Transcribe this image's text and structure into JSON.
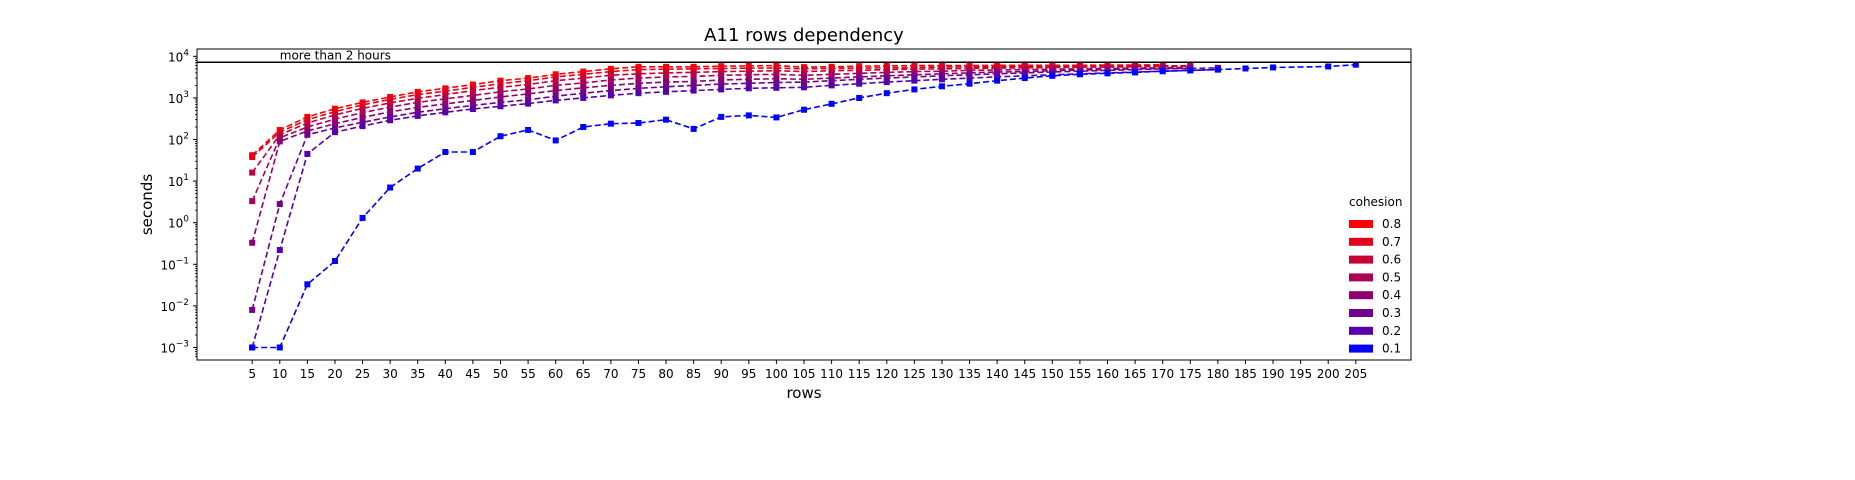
{
  "chart_data": {
    "type": "line",
    "title": "A11 rows dependency",
    "xlabel": "rows",
    "ylabel": "seconds",
    "y_scale": "log",
    "ylim": [
      0.0005,
      15000
    ],
    "xlim": [
      -5,
      215
    ],
    "x_ticks": [
      5,
      10,
      15,
      20,
      25,
      30,
      35,
      40,
      45,
      50,
      55,
      60,
      65,
      70,
      75,
      80,
      85,
      90,
      95,
      100,
      105,
      110,
      115,
      120,
      125,
      130,
      135,
      140,
      145,
      150,
      155,
      160,
      165,
      170,
      175,
      180,
      185,
      190,
      195,
      200,
      205
    ],
    "y_ticks": [
      {
        "value": 0.001,
        "base": "10",
        "exp": "−3"
      },
      {
        "value": 0.01,
        "base": "10",
        "exp": "−2"
      },
      {
        "value": 0.1,
        "base": "10",
        "exp": "−1"
      },
      {
        "value": 1,
        "base": "10",
        "exp": "0"
      },
      {
        "value": 10,
        "base": "10",
        "exp": "1"
      },
      {
        "value": 100,
        "base": "10",
        "exp": "2"
      },
      {
        "value": 1000,
        "base": "10",
        "exp": "3"
      },
      {
        "value": 10000,
        "base": "10",
        "exp": "4"
      }
    ],
    "threshold": {
      "value": 7200,
      "label": "more than 2 hours",
      "color": "#000000"
    },
    "legend": {
      "title": "cohesion",
      "placement": "center-right"
    },
    "grid": false,
    "series": [
      {
        "name": "0.8",
        "color": "#ff0000",
        "x": [
          5,
          10,
          15,
          20,
          25,
          30,
          35,
          40,
          45,
          50,
          55,
          60,
          65,
          70,
          75,
          80,
          85,
          90,
          95,
          100,
          105,
          110,
          115,
          120,
          125,
          130,
          135,
          140,
          145,
          150,
          155,
          160,
          165,
          170
        ],
        "y": [
          42,
          170,
          350,
          550,
          780,
          1050,
          1400,
          1700,
          2100,
          2600,
          3000,
          3700,
          4300,
          5000,
          5600,
          5600,
          5600,
          5800,
          5900,
          6000,
          5500,
          5600,
          5800,
          5900,
          6000,
          6000,
          6000,
          6100,
          6100,
          6100,
          6100,
          6200,
          6200,
          6300
        ]
      },
      {
        "name": "0.7",
        "color": "#e2001c",
        "x": [
          5,
          10,
          15,
          20,
          25,
          30,
          35,
          40,
          45,
          50,
          55,
          60,
          65,
          70,
          75,
          80,
          85,
          90,
          95,
          100,
          105,
          110,
          115,
          120,
          125,
          130,
          135,
          140,
          145,
          150,
          155,
          160,
          165,
          170,
          175
        ],
        "y": [
          38,
          150,
          300,
          470,
          680,
          920,
          1200,
          1450,
          1800,
          2200,
          2600,
          3200,
          3700,
          4300,
          4800,
          4900,
          5000,
          5100,
          5200,
          5200,
          5000,
          5100,
          5200,
          5300,
          5400,
          5500,
          5600,
          5600,
          5700,
          5700,
          5800,
          5800,
          5900,
          5900,
          6000
        ]
      },
      {
        "name": "0.6",
        "color": "#c60038",
        "x": [
          5,
          10,
          15,
          20,
          25,
          30,
          35,
          40,
          45,
          50,
          55,
          60,
          65,
          70,
          75,
          80,
          85,
          90,
          95,
          100,
          105,
          110,
          115,
          120,
          125,
          130,
          135,
          140,
          145,
          150,
          155,
          160,
          165,
          170,
          175
        ],
        "y": [
          16,
          130,
          250,
          390,
          560,
          760,
          980,
          1200,
          1500,
          1800,
          2100,
          2600,
          3000,
          3500,
          3800,
          4000,
          4100,
          4300,
          4400,
          4500,
          4300,
          4500,
          4600,
          4800,
          4900,
          5000,
          5100,
          5200,
          5300,
          5400,
          5500,
          5500,
          5600,
          5700,
          5800
        ]
      },
      {
        "name": "0.5",
        "color": "#aa0055",
        "x": [
          5,
          10,
          15,
          20,
          25,
          30,
          35,
          40,
          45,
          50,
          55,
          60,
          65,
          70,
          75,
          80,
          85,
          90,
          95,
          100,
          105,
          110,
          115,
          120,
          125,
          130,
          135,
          140,
          145,
          150,
          155,
          160,
          165,
          170,
          175
        ],
        "y": [
          3.3,
          110,
          200,
          310,
          440,
          600,
          780,
          950,
          1150,
          1400,
          1650,
          2000,
          2300,
          2700,
          3000,
          3200,
          3300,
          3500,
          3600,
          3700,
          3500,
          3700,
          3900,
          4100,
          4300,
          4400,
          4600,
          4700,
          4800,
          4900,
          5000,
          5100,
          5200,
          5300,
          5400
        ]
      },
      {
        "name": "0.4",
        "color": "#8d0071",
        "x": [
          5,
          10,
          15,
          20,
          25,
          30,
          35,
          40,
          45,
          50,
          55,
          60,
          65,
          70,
          75,
          80,
          85,
          90,
          95,
          100,
          105,
          110,
          115,
          120,
          125,
          130,
          135,
          140,
          145,
          150,
          155,
          160,
          165,
          170,
          175
        ],
        "y": [
          0.33,
          90,
          160,
          240,
          340,
          460,
          590,
          720,
          870,
          1050,
          1250,
          1500,
          1750,
          2000,
          2250,
          2400,
          2500,
          2700,
          2800,
          2900,
          2800,
          3000,
          3200,
          3400,
          3600,
          3800,
          4000,
          4200,
          4300,
          4500,
          4700,
          4800,
          5000,
          5100,
          5200
        ]
      },
      {
        "name": "0.3",
        "color": "#71008d",
        "x": [
          5,
          10,
          15,
          20,
          25,
          30,
          35,
          40,
          45,
          50,
          55,
          60,
          65,
          70,
          75,
          80,
          85,
          90,
          95,
          100,
          105,
          110,
          115,
          120,
          125,
          130,
          135,
          140,
          145,
          150,
          155,
          160,
          165,
          170,
          175,
          180
        ],
        "y": [
          0.008,
          2.8,
          130,
          190,
          260,
          350,
          450,
          550,
          660,
          780,
          900,
          1100,
          1300,
          1500,
          1700,
          1850,
          2000,
          2150,
          2250,
          2350,
          2400,
          2600,
          2800,
          3000,
          3200,
          3400,
          3600,
          3800,
          4000,
          4200,
          4400,
          4600,
          4800,
          5000,
          5100,
          5300
        ]
      },
      {
        "name": "0.2",
        "color": "#5500aa",
        "x": [
          5,
          10,
          15,
          20,
          25,
          30,
          35,
          40,
          45,
          50,
          55,
          60,
          65,
          70,
          75,
          80,
          85,
          90,
          95,
          100,
          105,
          110,
          115,
          120,
          125,
          130,
          135,
          140,
          145,
          150,
          155,
          160,
          165,
          170,
          175,
          180
        ],
        "y": [
          0.001,
          0.22,
          45,
          150,
          210,
          290,
          370,
          450,
          540,
          630,
          730,
          870,
          1000,
          1150,
          1300,
          1400,
          1500,
          1600,
          1700,
          1750,
          1800,
          2000,
          2200,
          2400,
          2600,
          2800,
          3000,
          3200,
          3400,
          3600,
          3800,
          4000,
          4200,
          4400,
          4600,
          4800
        ]
      },
      {
        "name": "0.1",
        "color": "#0000ff",
        "x": [
          5,
          10,
          15,
          20,
          25,
          30,
          35,
          40,
          45,
          50,
          55,
          60,
          65,
          70,
          75,
          80,
          85,
          90,
          95,
          100,
          105,
          110,
          115,
          120,
          125,
          130,
          135,
          140,
          145,
          150,
          155,
          160,
          165,
          170,
          175,
          180,
          185,
          190,
          200,
          205
        ],
        "y": [
          0.001,
          0.001,
          0.033,
          0.12,
          1.3,
          7,
          20,
          50,
          50,
          120,
          170,
          95,
          200,
          240,
          250,
          300,
          180,
          350,
          380,
          340,
          520,
          720,
          1000,
          1300,
          1600,
          1900,
          2200,
          2600,
          3000,
          3400,
          3700,
          3900,
          4100,
          4400,
          4600,
          4800,
          5100,
          5400,
          5700,
          6300
        ]
      }
    ]
  }
}
